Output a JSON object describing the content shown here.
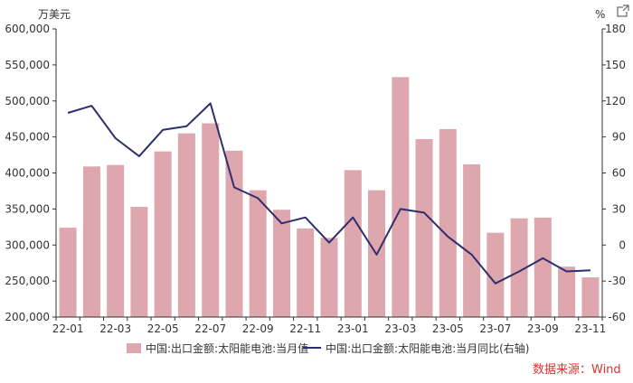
{
  "chart_data": {
    "type": "bar+line",
    "categories": [
      "22-01",
      "22-02",
      "22-03",
      "22-04",
      "22-05",
      "22-06",
      "22-07",
      "22-08",
      "22-09",
      "22-10",
      "22-11",
      "22-12",
      "23-01",
      "23-02",
      "23-03",
      "23-04",
      "23-05",
      "23-06",
      "23-07",
      "23-08",
      "23-09",
      "23-10",
      "23-11"
    ],
    "x_tick_labels": [
      "22-01",
      "22-03",
      "22-05",
      "22-07",
      "22-09",
      "22-11",
      "23-01",
      "23-03",
      "23-05",
      "23-07",
      "23-09",
      "23-11"
    ],
    "series": [
      {
        "name": "中国:出口金额:太阳能电池:当月值",
        "type": "bar",
        "axis": "left",
        "color": "#dea7ad",
        "values": [
          324000,
          409000,
          411000,
          353000,
          430000,
          455000,
          469000,
          431000,
          376000,
          349000,
          323000,
          310000,
          404000,
          376000,
          533000,
          447000,
          461000,
          412000,
          317000,
          337000,
          338000,
          270000,
          255000
        ]
      },
      {
        "name": "中国:出口金额:太阳能电池:当月同比(右轴)",
        "type": "line",
        "axis": "right",
        "color": "#2e2e6e",
        "values": [
          110,
          116,
          89,
          74,
          96,
          99,
          118,
          48,
          39,
          18,
          23,
          2,
          23,
          -8,
          30,
          27,
          7,
          -8,
          -32,
          -22,
          -11,
          -22,
          -21
        ]
      }
    ],
    "left_axis": {
      "unit": "万美元",
      "ylim": [
        200000,
        600000
      ],
      "ticks": [
        200000,
        250000,
        300000,
        350000,
        400000,
        450000,
        500000,
        550000,
        600000
      ],
      "tick_labels": [
        "200,000",
        "250,000",
        "300,000",
        "350,000",
        "400,000",
        "450,000",
        "500,000",
        "550,000",
        "600,000"
      ]
    },
    "right_axis": {
      "unit": "%",
      "ylim": [
        -60,
        180
      ],
      "ticks": [
        -60,
        -30,
        0,
        30,
        60,
        90,
        120,
        150,
        180
      ],
      "tick_labels": [
        "-60",
        "-30",
        "0",
        "30",
        "60",
        "90",
        "120",
        "150",
        "180"
      ]
    },
    "grid": false,
    "legend_position": "bottom",
    "source": "数据来源：Wind"
  },
  "icons": {
    "export": "external-link-icon"
  }
}
